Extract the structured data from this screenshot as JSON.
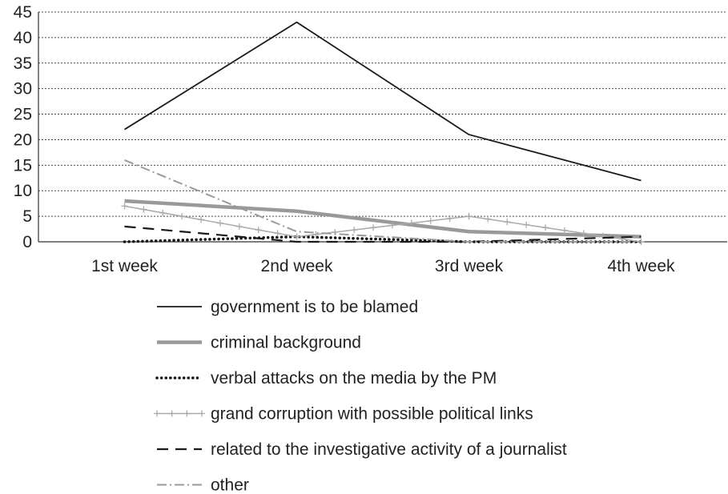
{
  "chart_data": {
    "type": "line",
    "categories": [
      "1st week",
      "2nd week",
      "3rd week",
      "4th week"
    ],
    "ylim": [
      0,
      45
    ],
    "yticks": [
      0,
      5,
      10,
      15,
      20,
      25,
      30,
      35,
      40,
      45
    ],
    "grid": true,
    "legend_position": "bottom",
    "series": [
      {
        "name": "government is to be blamed",
        "values": [
          22,
          43,
          21,
          12
        ],
        "color": "#1a1a1a",
        "style": "solid-thin"
      },
      {
        "name": "criminal background",
        "values": [
          8,
          6,
          2,
          1
        ],
        "color": "#999999",
        "style": "solid-thick"
      },
      {
        "name": "verbal attacks on the media by the PM",
        "values": [
          0,
          1,
          0,
          0
        ],
        "color": "#111111",
        "style": "dotted"
      },
      {
        "name": "grand corruption with possible political links",
        "values": [
          7,
          1,
          5,
          0
        ],
        "color": "#aaaaaa",
        "style": "plus-markers"
      },
      {
        "name": "related to the investigative activity of a journalist",
        "values": [
          3,
          0,
          0,
          1
        ],
        "color": "#1a1a1a",
        "style": "dashed"
      },
      {
        "name": "other",
        "values": [
          16,
          2,
          0,
          0
        ],
        "color": "#9a9a9a",
        "style": "dash-dot"
      }
    ]
  }
}
